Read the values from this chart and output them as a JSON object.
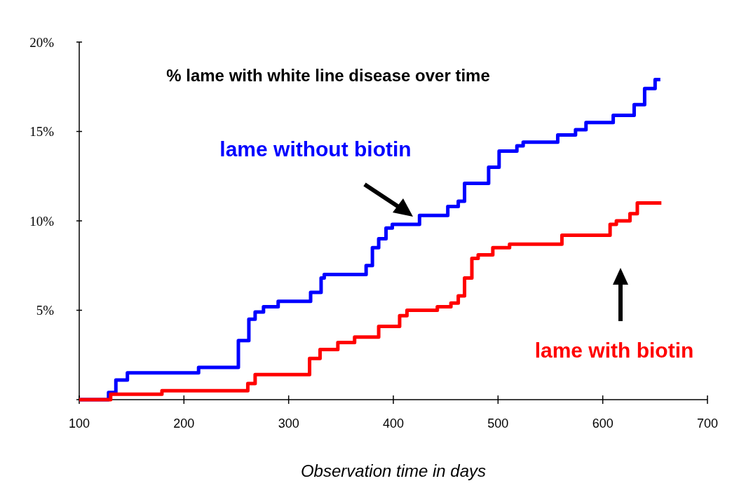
{
  "chart_data": {
    "type": "step",
    "title": "% lame with white line disease over time",
    "xlabel": "Observation time in days",
    "xlim": [
      100,
      700
    ],
    "xticks": [
      100,
      200,
      300,
      400,
      500,
      600,
      700
    ],
    "ylim": [
      0,
      20
    ],
    "yticks": [
      {
        "value": 0,
        "label": null
      },
      {
        "value": 5,
        "label": "5%"
      },
      {
        "value": 10,
        "label": "10%"
      },
      {
        "value": 15,
        "label": "15%"
      },
      {
        "value": 20,
        "label": "20%"
      }
    ],
    "grid": false,
    "series": [
      {
        "name": "lame without biotin",
        "color": "#0000ff",
        "x": [
          100,
          128,
          135,
          146,
          214,
          252,
          262,
          268,
          276,
          290,
          321,
          331,
          334,
          374,
          380,
          386,
          393,
          399,
          425,
          452,
          462,
          468,
          491,
          501,
          518,
          524,
          557,
          574,
          584,
          610,
          630,
          640,
          650,
          655
        ],
        "values": [
          0,
          0.4,
          1.1,
          1.5,
          1.8,
          3.3,
          4.5,
          4.9,
          5.2,
          5.5,
          6.0,
          6.8,
          7.0,
          7.5,
          8.5,
          9.0,
          9.6,
          9.8,
          10.3,
          10.8,
          11.1,
          12.1,
          13.0,
          13.9,
          14.2,
          14.4,
          14.8,
          15.1,
          15.5,
          15.9,
          16.5,
          17.4,
          17.9,
          17.9
        ]
      },
      {
        "name": "lame with biotin",
        "color": "#ff0000",
        "x": [
          100,
          130,
          179,
          261,
          268,
          320,
          330,
          347,
          363,
          386,
          406,
          413,
          442,
          455,
          462,
          468,
          475,
          481,
          495,
          511,
          561,
          607,
          613,
          626,
          633,
          656
        ],
        "values": [
          0,
          0.3,
          0.5,
          0.9,
          1.4,
          2.3,
          2.8,
          3.2,
          3.5,
          4.1,
          4.7,
          5.0,
          5.2,
          5.4,
          5.8,
          6.8,
          7.9,
          8.1,
          8.5,
          8.7,
          9.2,
          9.8,
          10.0,
          10.4,
          11.0,
          11.0
        ]
      }
    ]
  }
}
